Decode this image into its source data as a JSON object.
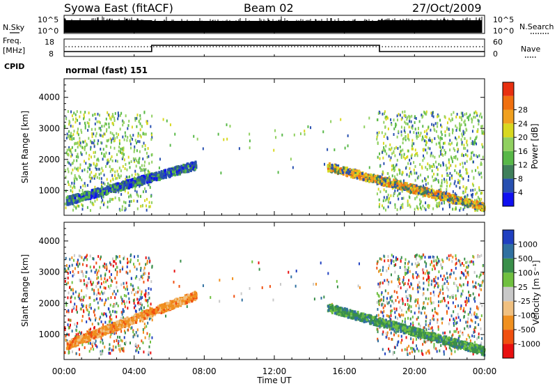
{
  "header": {
    "title": "Syowa East (fitACF)",
    "beam": "Beam 02",
    "date": "27/Oct/2009"
  },
  "top_panels": {
    "nsky_label": "N.Sky",
    "nsearch_label": "N.Search",
    "count_ticks": [
      "10^5",
      "10^0"
    ],
    "freq_label_1": "Freq.",
    "freq_label_2": "[MHz]",
    "freq_ticks": [
      "18",
      "8"
    ],
    "nave_label": "Nave",
    "nave_ticks": [
      "60",
      "0"
    ],
    "cpid_label": "CPID",
    "cpid_value": "normal (fast) 151",
    "freq_steps": [
      {
        "from": 0.0,
        "to": 5.0,
        "level": "low"
      },
      {
        "from": 5.0,
        "to": 18.0,
        "level": "high"
      },
      {
        "from": 18.0,
        "to": 24.0,
        "level": "low"
      }
    ]
  },
  "chart_data": [
    {
      "type": "heatmap",
      "name": "power",
      "ylabel": "Slant Range [km]",
      "yticks": [
        "1000",
        "2000",
        "3000",
        "4000"
      ],
      "ylim": [
        200,
        4600
      ],
      "xlim": [
        0,
        24
      ],
      "colorbar_label": "Power [dB]",
      "colorbar_ticks": [
        "4",
        "8",
        "12",
        "16",
        "20",
        "24",
        "28"
      ],
      "colorbar_colors": [
        "#1010f0",
        "#2850b0",
        "#3f7f5a",
        "#58b848",
        "#90d060",
        "#d8d820",
        "#f0a020",
        "#f07010",
        "#e83010"
      ],
      "features": [
        {
          "t0": 0.1,
          "t1": 7.5,
          "r0": 700,
          "r1": 1850,
          "shade": "mixed-blue"
        },
        {
          "t0": 15.0,
          "t1": 24.0,
          "r0": 500,
          "r1": 1800,
          "shade": "mixed-orange"
        }
      ]
    },
    {
      "type": "heatmap",
      "name": "velocity",
      "ylabel": "Slant Range [km]",
      "yticks": [
        "1000",
        "2000",
        "3000",
        "4000"
      ],
      "ylim": [
        200,
        4600
      ],
      "xlim": [
        0,
        24
      ],
      "xticks": [
        "00:00",
        "04:00",
        "08:00",
        "12:00",
        "16:00",
        "20:00",
        "00:00"
      ],
      "xlabel": "Time UT",
      "colorbar_label": "Velocity [m s⁻¹]",
      "colorbar_ticks": [
        "1000",
        "500",
        "100",
        "25",
        "-25",
        "-100",
        "-500",
        "-1000"
      ],
      "colorbar_colors": [
        "#2040c0",
        "#3070a0",
        "#3a8f4a",
        "#70c040",
        "#c8c8c8",
        "#f0c080",
        "#f09020",
        "#f05010",
        "#e81010"
      ],
      "features": [
        {
          "t0": 0.1,
          "t1": 7.5,
          "r0": 600,
          "r1": 2300,
          "shade": "negative"
        },
        {
          "t0": 15.0,
          "t1": 24.0,
          "r0": 500,
          "r1": 1900,
          "shade": "positive"
        }
      ]
    }
  ]
}
